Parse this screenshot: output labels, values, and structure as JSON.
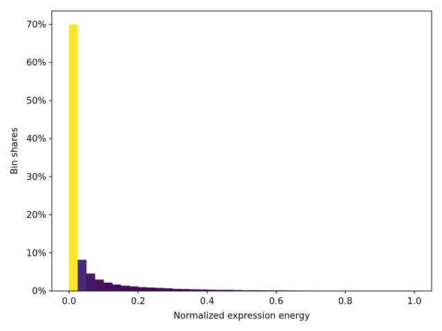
{
  "chart_data": {
    "type": "bar",
    "title": "",
    "xlabel": "Normalized expression energy",
    "ylabel": "Bin shares",
    "xlim": [
      -0.05,
      1.05
    ],
    "ylim": [
      0,
      0.735
    ],
    "xticks": [
      0.0,
      0.2,
      0.4,
      0.6,
      0.8,
      1.0
    ],
    "xtick_labels": [
      "0.0",
      "0.2",
      "0.4",
      "0.6",
      "0.8",
      "1.0"
    ],
    "yticks": [
      0,
      0.1,
      0.2,
      0.3,
      0.4,
      0.5,
      0.6,
      0.7
    ],
    "ytick_labels": [
      "0%",
      "10%",
      "20%",
      "30%",
      "40%",
      "50%",
      "60%",
      "70%"
    ],
    "grid": false,
    "colormap": "viridis",
    "bin_edges": [
      0.0,
      0.025,
      0.05,
      0.075,
      0.1,
      0.125,
      0.15,
      0.175,
      0.2,
      0.225,
      0.25,
      0.275,
      0.3,
      0.325,
      0.35,
      0.375,
      0.4,
      0.425,
      0.45,
      0.475,
      0.5,
      0.525,
      0.55,
      0.575,
      0.6,
      0.625,
      0.65,
      0.675,
      0.7,
      0.725,
      0.75,
      0.775,
      0.8,
      0.825,
      0.85,
      0.875,
      0.9,
      0.925,
      0.95,
      0.975,
      1.0
    ],
    "values": [
      0.7,
      0.082,
      0.046,
      0.03,
      0.022,
      0.017,
      0.014,
      0.012,
      0.01,
      0.009,
      0.008,
      0.007,
      0.0055,
      0.005,
      0.0045,
      0.004,
      0.0035,
      0.003,
      0.003,
      0.0025,
      0.002,
      0.002,
      0.0018,
      0.0016,
      0.0015,
      0.0014,
      0.0012,
      0.0011,
      0.001,
      0.0002,
      0.0001,
      0.0001,
      0.0001,
      0.0001,
      5e-05,
      5e-05,
      5e-05,
      5e-05,
      5e-05,
      5e-05
    ]
  }
}
